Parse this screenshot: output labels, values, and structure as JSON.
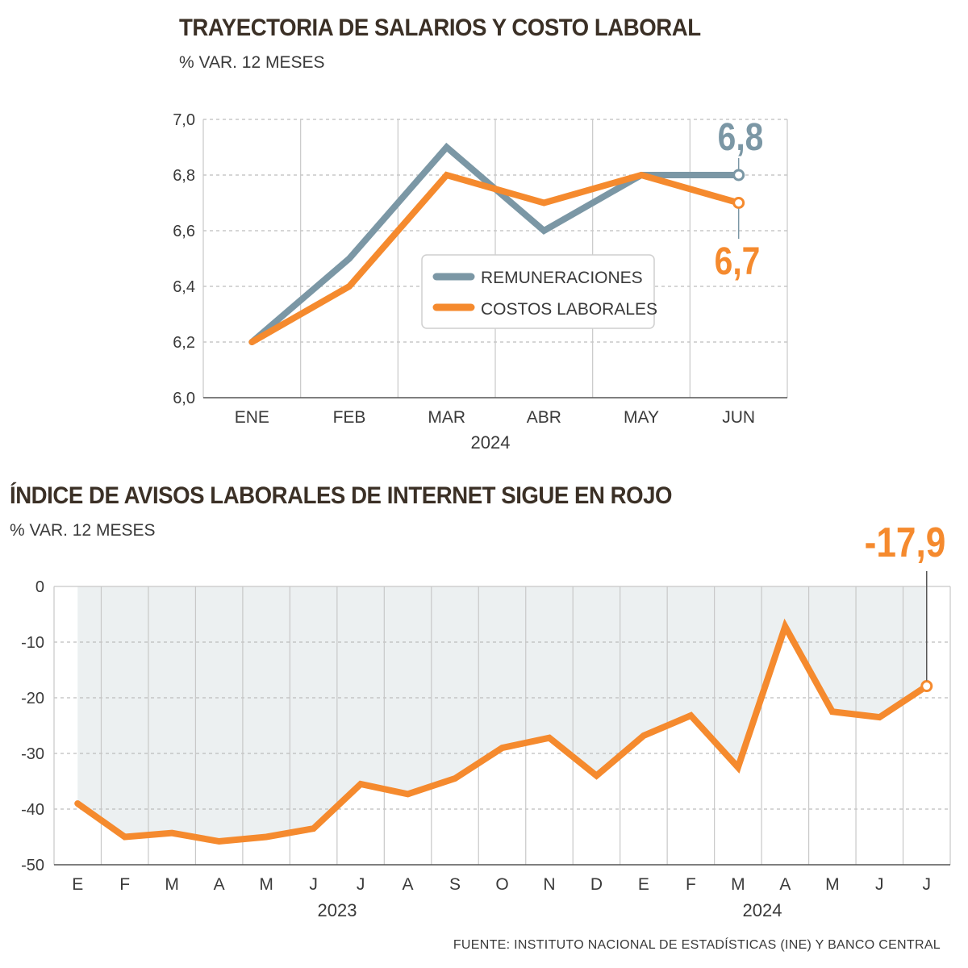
{
  "source": "FUENTE: INSTITUTO NACIONAL DE ESTADÍSTICAS (INE) Y BANCO CENTRAL",
  "colors": {
    "gray": "#7b97a5",
    "orange": "#f58a2e",
    "grid": "#c8c8c8",
    "shade": "#ecf0f1",
    "text": "#3a3a3a"
  },
  "chart_data": [
    {
      "type": "line",
      "title": "TRAYECTORIA DE SALARIOS Y COSTO LABORAL",
      "subtitle": "% VAR. 12 MESES",
      "categories": [
        "ENE",
        "FEB",
        "MAR",
        "ABR",
        "MAY",
        "JUN"
      ],
      "year_label": "2024",
      "ylim": [
        6.0,
        7.0
      ],
      "yticks": [
        "7,0",
        "6,8",
        "6,6",
        "6,4",
        "6,2",
        "6,0"
      ],
      "legend_position": "center",
      "series": [
        {
          "name": "REMUNERACIONES",
          "color": "#7b97a5",
          "values": [
            6.2,
            6.5,
            6.9,
            6.6,
            6.8,
            6.8
          ],
          "end_label": "6,8"
        },
        {
          "name": "COSTOS LABORALES",
          "color": "#f58a2e",
          "values": [
            6.2,
            6.4,
            6.8,
            6.7,
            6.8,
            6.7
          ],
          "end_label": "6,7"
        }
      ]
    },
    {
      "type": "area",
      "title": "ÍNDICE DE AVISOS LABORALES DE INTERNET SIGUE EN ROJO",
      "subtitle": "% VAR. 12 MESES",
      "categories": [
        "E",
        "F",
        "M",
        "A",
        "M",
        "J",
        "J",
        "A",
        "S",
        "O",
        "N",
        "D",
        "E",
        "F",
        "M",
        "A",
        "M",
        "J",
        "J"
      ],
      "year_labels": [
        "2023",
        "2024"
      ],
      "ylim": [
        -50,
        0
      ],
      "yticks": [
        "0",
        "-10",
        "-20",
        "-30",
        "-40",
        "-50"
      ],
      "series": [
        {
          "color": "#f58a2e",
          "values": [
            -39,
            -45,
            -44.3,
            -45.8,
            -45,
            -43.5,
            -35.5,
            -37.3,
            -34.5,
            -29,
            -27.2,
            -34,
            -26.8,
            -23.2,
            -32.5,
            -7.2,
            -22.5,
            -23.5,
            -17.9
          ],
          "end_label": "-17,9"
        }
      ]
    }
  ]
}
